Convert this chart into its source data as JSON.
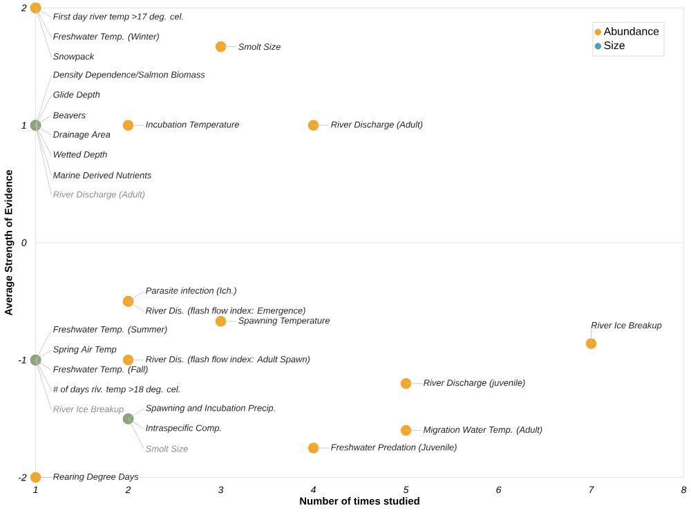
{
  "chart_data": {
    "type": "scatter",
    "xlabel": "Number of times studied",
    "ylabel": "Average Strength of Evidence",
    "xlim": [
      1,
      8
    ],
    "xticks": [
      1,
      2,
      3,
      4,
      5,
      6,
      7,
      8
    ],
    "ylim": [
      -2,
      2
    ],
    "yticks": [
      -2,
      -1,
      0,
      1,
      2
    ],
    "grid": false,
    "legend": "top right",
    "marker": "circle",
    "ref_lines": [
      {
        "axis": "y",
        "value": 0,
        "color": "#dddddd"
      }
    ],
    "series": [
      {
        "name": "Abundance",
        "color": "#f2a72a",
        "x": [
          1,
          1,
          1,
          3,
          1,
          1,
          1,
          1,
          1,
          1,
          2,
          4,
          2,
          2,
          3,
          7,
          1,
          1,
          1,
          1,
          2,
          5,
          5,
          2,
          2,
          4,
          1
        ],
        "values": [
          2,
          2,
          2,
          1.67,
          1,
          1,
          1,
          1,
          1,
          1,
          1,
          1,
          -0.5,
          -0.5,
          -0.67,
          -0.86,
          -1,
          -1,
          -1,
          -1,
          -1,
          -1.2,
          -1.6,
          -1.5,
          -1.5,
          -1.75,
          -2
        ],
        "value_labels": [
          "First day river temp >17 deg. cel.",
          "Freshwater Temp. (Winter)",
          "Snowpack",
          "Smolt Size",
          "Density Dependence/Salmon Biomass",
          "Glide Depth",
          "Beavers",
          "Drainage Area",
          "Wetted Depth",
          "Marine Derived Nutrients",
          "Incubation Temperature",
          "River Discharge (Adult)",
          "Parasite infection (Ich.)",
          "River Dis. (flash flow index: Emergence)",
          "Spawning Temperature",
          "River Ice Breakup",
          "Freshwater Temp. (Summer)",
          "Spring Air Temp",
          "Freshwater Temp. (Fall)",
          "# of days riv. temp >18 deg. cel.",
          "River Dis. (flash flow index: Adult Spawn)",
          "River Discharge (juvenile)",
          "Migration Water Temp. (Adult)",
          "Spawning and Incubation Precip.",
          "Intraspecific Comp.",
          "Freshwater Predation (Juvenile)",
          "Rearing Degree Days"
        ]
      },
      {
        "name": "Size",
        "color": "#4aa3b5",
        "x": [
          1,
          1,
          2
        ],
        "values": [
          1,
          -1,
          -1.5
        ],
        "value_labels": [
          "River Discharge (Adult)",
          "River Ice Breakup",
          "Smolt Size"
        ]
      }
    ]
  }
}
